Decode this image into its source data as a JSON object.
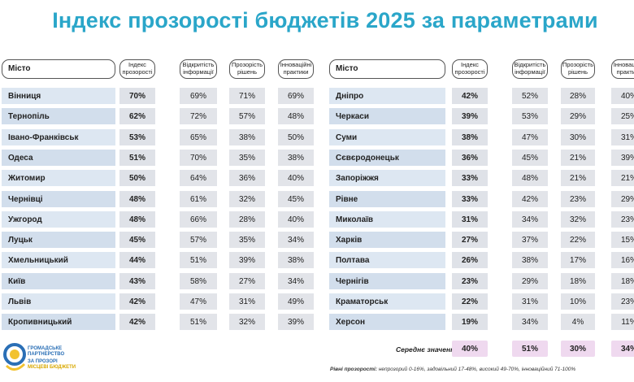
{
  "title": "Індекс прозорості бюджетів 2025 за параметрами",
  "headers": {
    "city": "Місто",
    "index": "Індекс прозорості",
    "openness": "Відкритість інформації",
    "decisions": "Прозорість рішень",
    "innovative": "Інноваційні практики"
  },
  "left_rows": [
    {
      "city": "Вінниця",
      "index": "70%",
      "openness": "69%",
      "decisions": "71%",
      "innovative": "69%"
    },
    {
      "city": "Тернопіль",
      "index": "62%",
      "openness": "72%",
      "decisions": "57%",
      "innovative": "48%"
    },
    {
      "city": "Івано-Франківськ",
      "index": "53%",
      "openness": "65%",
      "decisions": "38%",
      "innovative": "50%"
    },
    {
      "city": "Одеса",
      "index": "51%",
      "openness": "70%",
      "decisions": "35%",
      "innovative": "38%"
    },
    {
      "city": "Житомир",
      "index": "50%",
      "openness": "64%",
      "decisions": "36%",
      "innovative": "40%"
    },
    {
      "city": "Чернівці",
      "index": "48%",
      "openness": "61%",
      "decisions": "32%",
      "innovative": "45%"
    },
    {
      "city": "Ужгород",
      "index": "48%",
      "openness": "66%",
      "decisions": "28%",
      "innovative": "40%"
    },
    {
      "city": "Луцьк",
      "index": "45%",
      "openness": "57%",
      "decisions": "35%",
      "innovative": "34%"
    },
    {
      "city": "Хмельницький",
      "index": "44%",
      "openness": "51%",
      "decisions": "39%",
      "innovative": "38%"
    },
    {
      "city": "Київ",
      "index": "43%",
      "openness": "58%",
      "decisions": "27%",
      "innovative": "34%"
    },
    {
      "city": "Львів",
      "index": "42%",
      "openness": "47%",
      "decisions": "31%",
      "innovative": "49%"
    },
    {
      "city": "Кропивницький",
      "index": "42%",
      "openness": "51%",
      "decisions": "32%",
      "innovative": "39%"
    }
  ],
  "right_rows": [
    {
      "city": "Дніпро",
      "index": "42%",
      "openness": "52%",
      "decisions": "28%",
      "innovative": "40%"
    },
    {
      "city": "Черкаси",
      "index": "39%",
      "openness": "53%",
      "decisions": "29%",
      "innovative": "25%"
    },
    {
      "city": "Суми",
      "index": "38%",
      "openness": "47%",
      "decisions": "30%",
      "innovative": "31%"
    },
    {
      "city": "Сєвєродонецьк",
      "index": "36%",
      "openness": "45%",
      "decisions": "21%",
      "innovative": "39%"
    },
    {
      "city": "Запоріжжя",
      "index": "33%",
      "openness": "48%",
      "decisions": "21%",
      "innovative": "21%"
    },
    {
      "city": "Рівне",
      "index": "33%",
      "openness": "42%",
      "decisions": "23%",
      "innovative": "29%"
    },
    {
      "city": "Миколаїв",
      "index": "31%",
      "openness": "34%",
      "decisions": "32%",
      "innovative": "23%"
    },
    {
      "city": "Харків",
      "index": "27%",
      "openness": "37%",
      "decisions": "22%",
      "innovative": "15%"
    },
    {
      "city": "Полтава",
      "index": "26%",
      "openness": "38%",
      "decisions": "17%",
      "innovative": "16%"
    },
    {
      "city": "Чернігів",
      "index": "23%",
      "openness": "29%",
      "decisions": "18%",
      "innovative": "18%"
    },
    {
      "city": "Краматорськ",
      "index": "22%",
      "openness": "31%",
      "decisions": "10%",
      "innovative": "23%"
    },
    {
      "city": "Херсон",
      "index": "19%",
      "openness": "34%",
      "decisions": "4%",
      "innovative": "11%"
    }
  ],
  "average": {
    "label": "Середнє значення",
    "index": "40%",
    "openness": "51%",
    "decisions": "30%",
    "innovative": "34%"
  },
  "logo": {
    "line1": "ГРОМАДСЬКЕ",
    "line2": "ПАРТНЕРСТВО",
    "line3": "ЗА ПРОЗОРІ",
    "line4": "МІСЦЕВІ БЮДЖЕТИ"
  },
  "footnote": {
    "label": "Рівні прозорості:",
    "text": " непрозорий 0-16%, задовільний 17-48%, високий 49-70%, інноваційний 71-100%"
  },
  "colors": {
    "title": "#2aa6c9",
    "logo_blue": "#2a6fb6",
    "logo_yellow": "#f2c230",
    "average_bg": "#efd9ef"
  }
}
